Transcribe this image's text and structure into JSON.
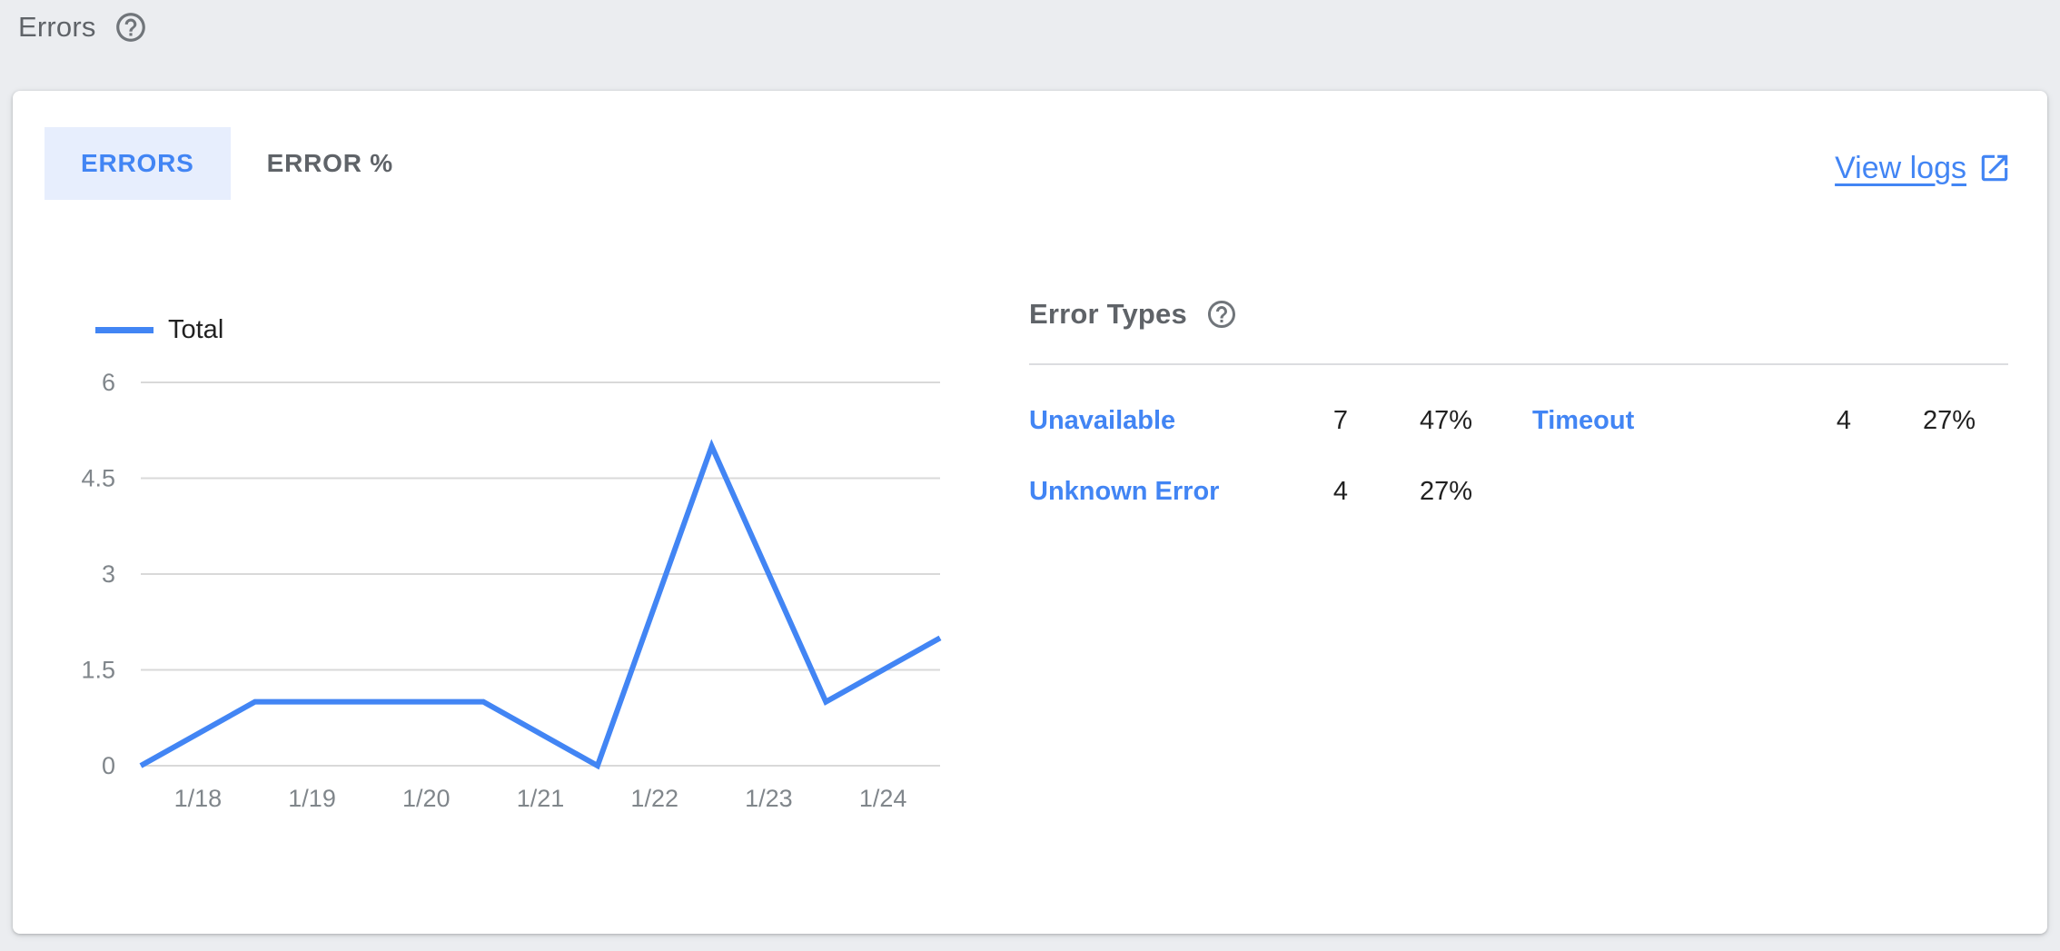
{
  "page": {
    "title": "Errors"
  },
  "card": {
    "tabs": [
      {
        "label": "ERRORS",
        "active": true
      },
      {
        "label": "ERROR %",
        "active": false
      }
    ],
    "view_logs_label": "View logs"
  },
  "chart_data": {
    "type": "line",
    "title": "",
    "legend_label": "Total",
    "legend_position": "top-left",
    "grid": "horizontal-only",
    "x_tick_labels": [
      "1/18",
      "1/19",
      "1/20",
      "1/21",
      "1/22",
      "1/23",
      "1/24"
    ],
    "y_ticks": [
      0,
      1.5,
      3,
      4.5,
      6
    ],
    "ylim": [
      0,
      6
    ],
    "series": [
      {
        "name": "Total",
        "color": "#4285f4",
        "values": [
          0,
          1,
          1,
          1,
          0,
          5,
          1,
          2
        ]
      }
    ],
    "x_layout_note": "8 evenly spaced samples spanning full plot width; day tick labels sit midway between samples"
  },
  "error_types": {
    "heading": "Error Types",
    "entries": [
      {
        "label": "Unavailable",
        "count": "7",
        "percent": "47%"
      },
      {
        "label": "Timeout",
        "count": "4",
        "percent": "27%"
      },
      {
        "label": "Unknown Error",
        "count": "4",
        "percent": "27%"
      }
    ]
  },
  "colors": {
    "accent_blue": "#4285f4",
    "tab_active_bg": "#e7eefd",
    "page_bg": "#ebedf0",
    "grid_line": "#d9d9d9",
    "axis_label": "#80868b",
    "text_dark": "#212121",
    "muted_gray": "#5f6368",
    "icon_gray": "#70757a"
  }
}
